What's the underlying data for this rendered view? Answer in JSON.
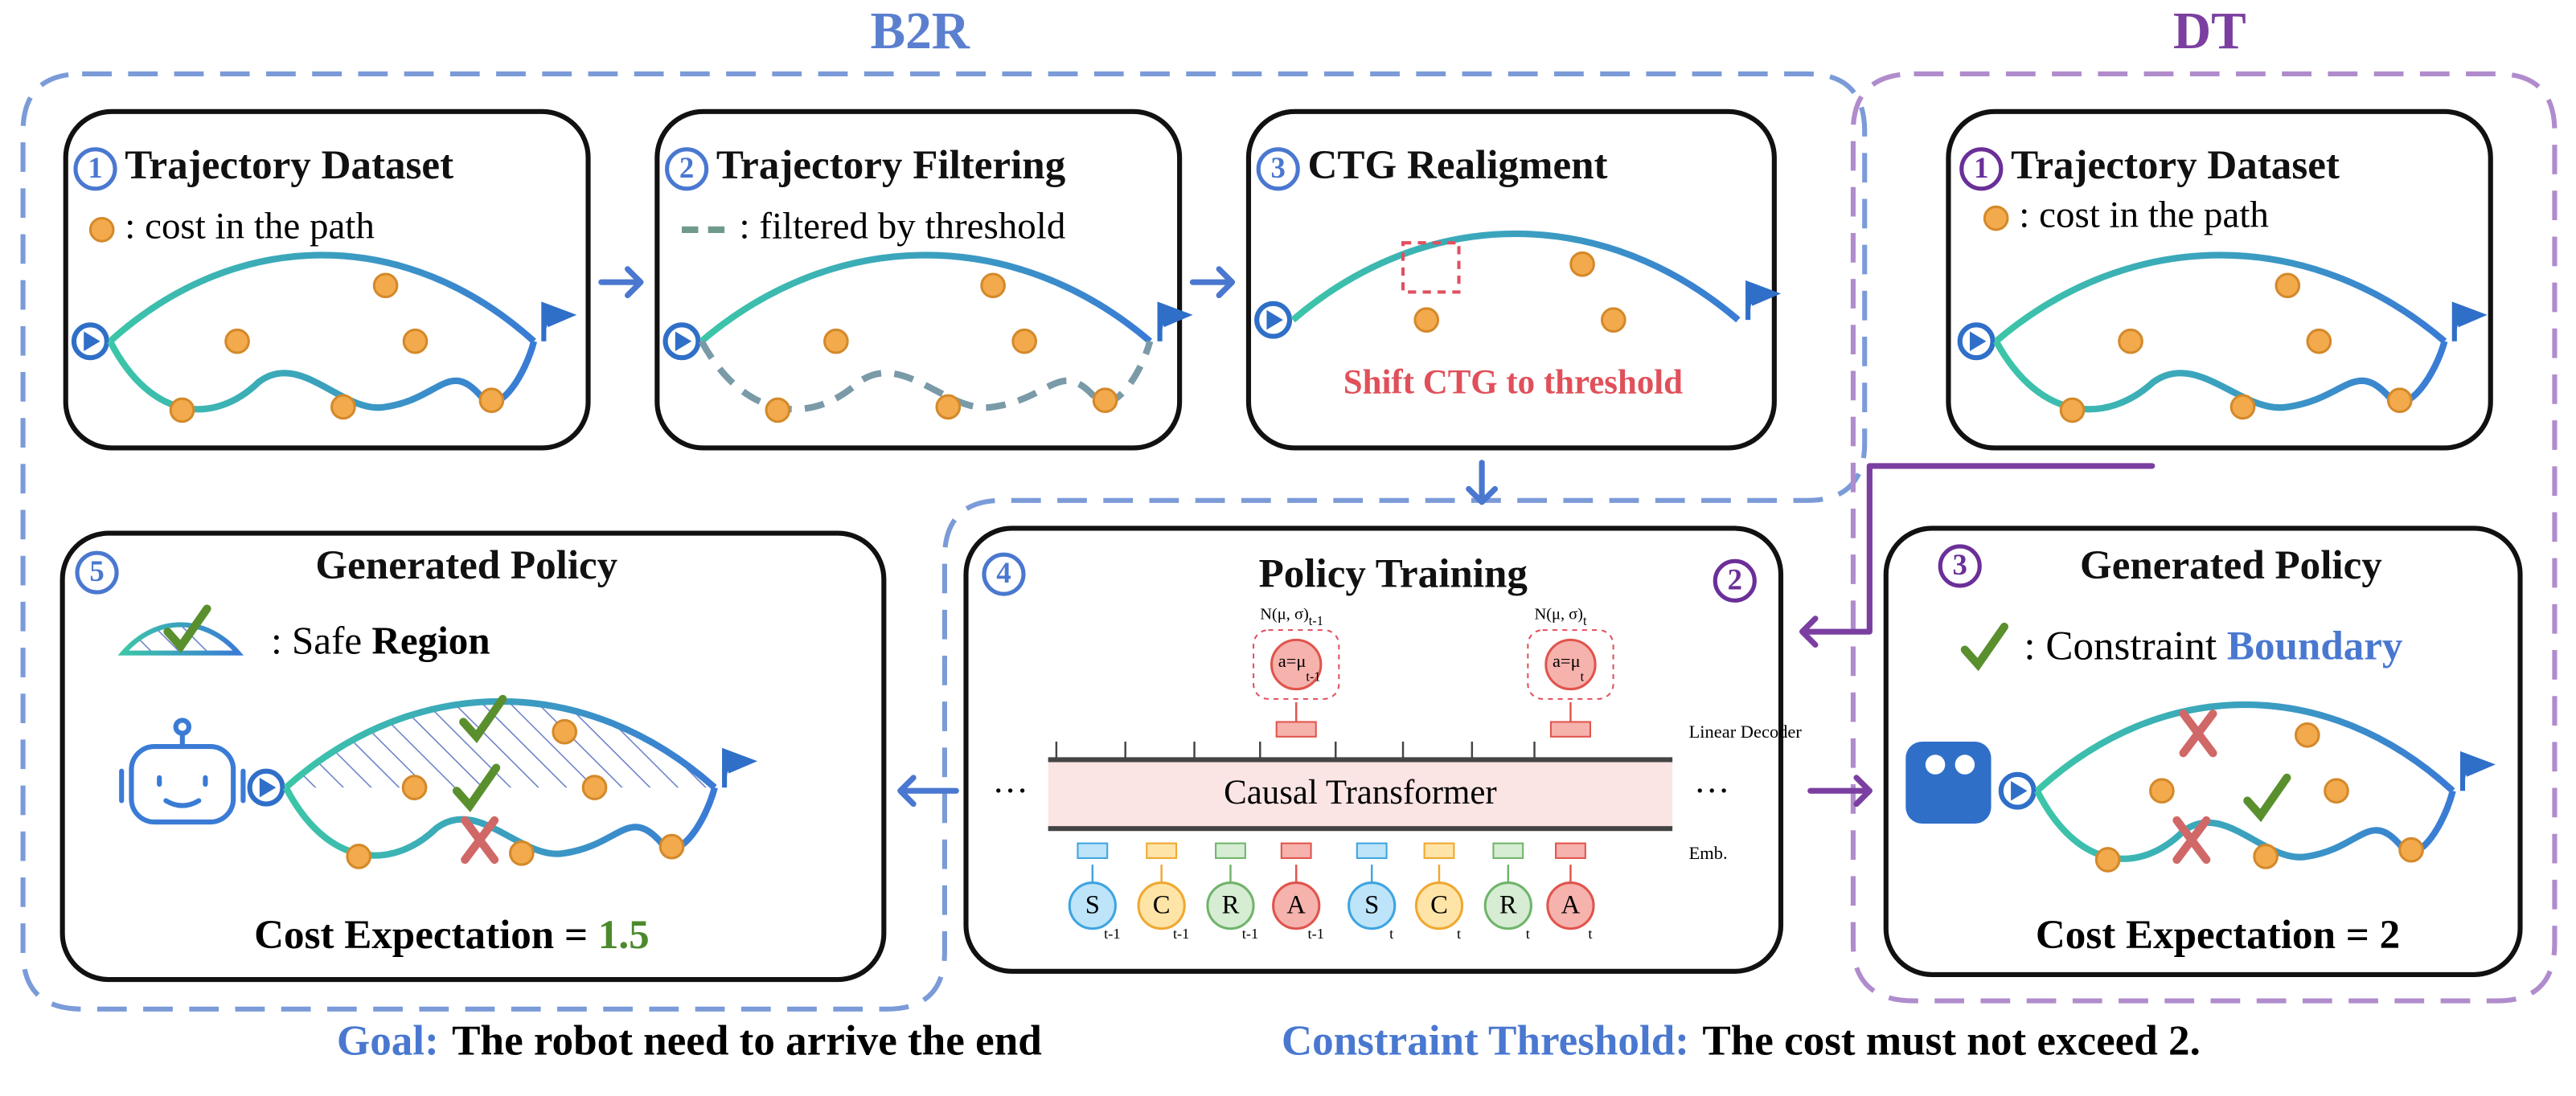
{
  "labels": {
    "b2r": "B2R",
    "dt": "DT"
  },
  "panels": [
    {
      "number": "1",
      "title": "Trajectory Dataset",
      "legend": ": cost in the path"
    },
    {
      "number": "2",
      "title": "Trajectory Filtering",
      "legend": ": filtered by threshold"
    },
    {
      "number": "3",
      "title": "CTG Realigment",
      "note": "Shift CTG to threshold"
    },
    {
      "number": "1",
      "title": "Trajectory Dataset",
      "legend": ": cost in the path"
    },
    {
      "number": "4",
      "title": "Policy Training",
      "dt_number": "2"
    },
    {
      "number": "5",
      "title": "Generated Policy",
      "legend": [
        ": Safe ",
        "Region"
      ],
      "result": [
        "Cost Expectation = ",
        "1.5"
      ]
    },
    {
      "number": "3",
      "title": "Generated Policy",
      "legend": [
        ": Constraint ",
        "Boundary"
      ],
      "result": [
        "Cost Expectation = 2"
      ]
    }
  ],
  "transformer": {
    "distribution": "N(μ, σ)",
    "action": "a=μ",
    "decoder": "Linear Decoder",
    "body": "Causal Transformer",
    "embedding": "Emb.",
    "ellipsis": "···",
    "steps": [
      "t-1",
      "t"
    ],
    "tokens": [
      "S",
      "C",
      "R",
      "A"
    ]
  },
  "footer": {
    "goal_label": "Goal:",
    "goal": "The robot need to arrive the end",
    "threshold_label": "Constraint Threshold:",
    "threshold": "The cost must not exceed 2."
  }
}
